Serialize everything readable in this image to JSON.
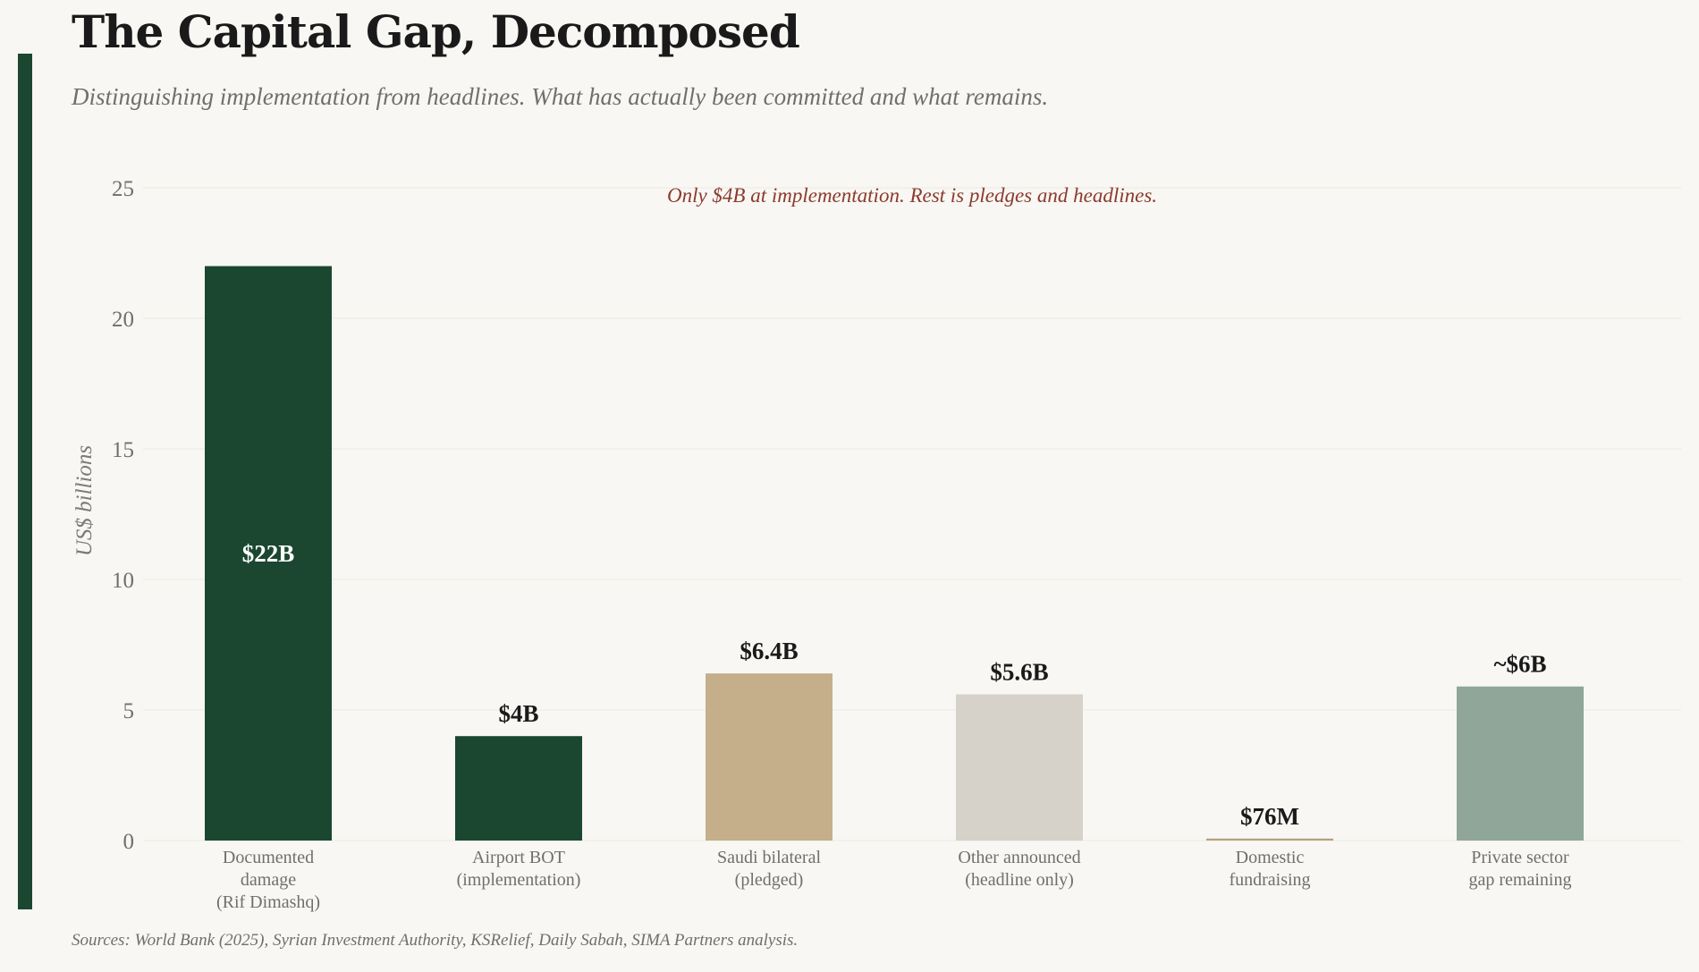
{
  "header": {
    "title": "The Capital Gap, Decomposed",
    "subtitle": "Distinguishing implementation from headlines. What has actually been committed and what remains."
  },
  "footer": {
    "source": "Sources: World Bank (2025), Syrian Investment Authority, KSRelief, Daily Sabah, SIMA Partners analysis."
  },
  "colors": {
    "accent": "#1b4731",
    "annotation": "#8c3a2e",
    "label_dark": "#1a1a1a",
    "label_light": "#ffffff"
  },
  "chart_data": {
    "type": "bar",
    "title": "The Capital Gap, Decomposed",
    "ylabel": "US$ billions",
    "xlabel": "",
    "ylim": [
      0,
      25
    ],
    "yticks": [
      0,
      5,
      10,
      15,
      20,
      25
    ],
    "grid": true,
    "annotation": "Only $4B at implementation. Rest is pledges and headlines.",
    "categories": [
      [
        "Documented",
        "damage",
        "(Rif Dimashq)"
      ],
      [
        "Airport BOT",
        "(implementation)"
      ],
      [
        "Saudi bilateral",
        "(pledged)"
      ],
      [
        "Other announced",
        "(headline only)"
      ],
      [
        "Domestic",
        "fundraising"
      ],
      [
        "Private sector",
        "gap remaining"
      ]
    ],
    "values": [
      22,
      4,
      6.4,
      5.6,
      0.076,
      5.9
    ],
    "value_labels": [
      "$22B",
      "$4B",
      "$6.4B",
      "$5.6B",
      "$76M",
      "~$6B"
    ],
    "label_inside": [
      true,
      false,
      false,
      false,
      false,
      false
    ],
    "bar_colors": [
      "#1b4731",
      "#1b4731",
      "#c4af8a",
      "#d6d1c9",
      "#b4a27c",
      "#8fa698"
    ]
  }
}
